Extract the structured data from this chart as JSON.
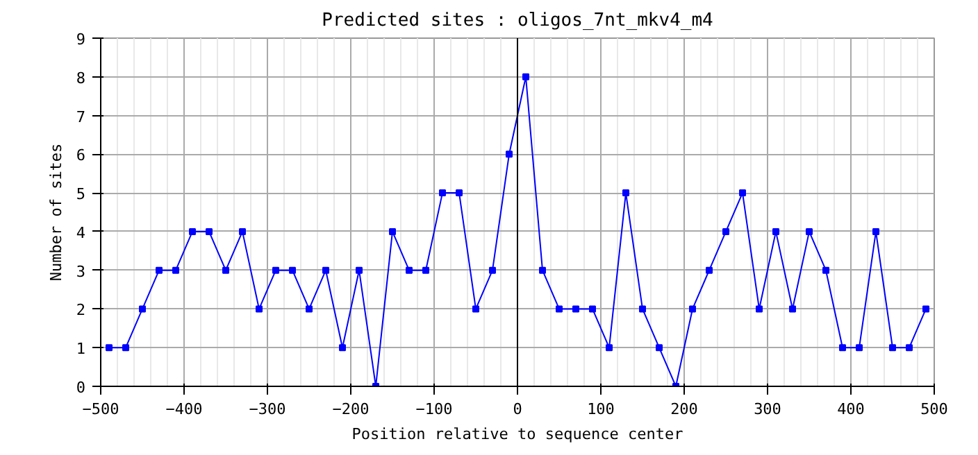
{
  "chart_data": {
    "type": "line",
    "title": "Predicted sites : oligos_7nt_mkv4_m4",
    "xlabel": "Position relative to sequence center",
    "ylabel": "Number of sites",
    "x": [
      -490,
      -470,
      -450,
      -430,
      -410,
      -390,
      -370,
      -350,
      -330,
      -310,
      -290,
      -270,
      -250,
      -230,
      -210,
      -190,
      -170,
      -150,
      -130,
      -110,
      -90,
      -70,
      -50,
      -30,
      -10,
      10,
      30,
      50,
      70,
      90,
      110,
      130,
      150,
      170,
      190,
      210,
      230,
      250,
      270,
      290,
      310,
      330,
      350,
      370,
      390,
      410,
      430,
      450,
      470,
      490
    ],
    "series": [
      {
        "color": "#0000ff",
        "values": [
          1,
          1,
          2,
          3,
          3,
          4,
          4,
          3,
          4,
          2,
          3,
          3,
          2,
          3,
          1,
          3,
          0,
          4,
          3,
          3,
          5,
          5,
          2,
          3,
          6,
          8,
          3,
          2,
          2,
          2,
          1,
          5,
          2,
          1,
          0,
          2,
          3,
          4,
          5,
          2,
          4,
          2,
          4,
          3,
          1,
          1,
          4,
          1,
          1,
          2
        ]
      }
    ],
    "xlim": [
      -500,
      500
    ],
    "xticks": [
      -500,
      -400,
      -300,
      -200,
      -100,
      0,
      100,
      200,
      300,
      400,
      500
    ],
    "ylim": [
      0,
      9
    ],
    "yticks": [
      0,
      1,
      2,
      3,
      4,
      5,
      6,
      7,
      8,
      9
    ],
    "ref_lines": [
      {
        "axis": "x",
        "value": 0,
        "color": "#000000"
      }
    ],
    "grid": true,
    "marker": "square",
    "line_style": "solid"
  }
}
